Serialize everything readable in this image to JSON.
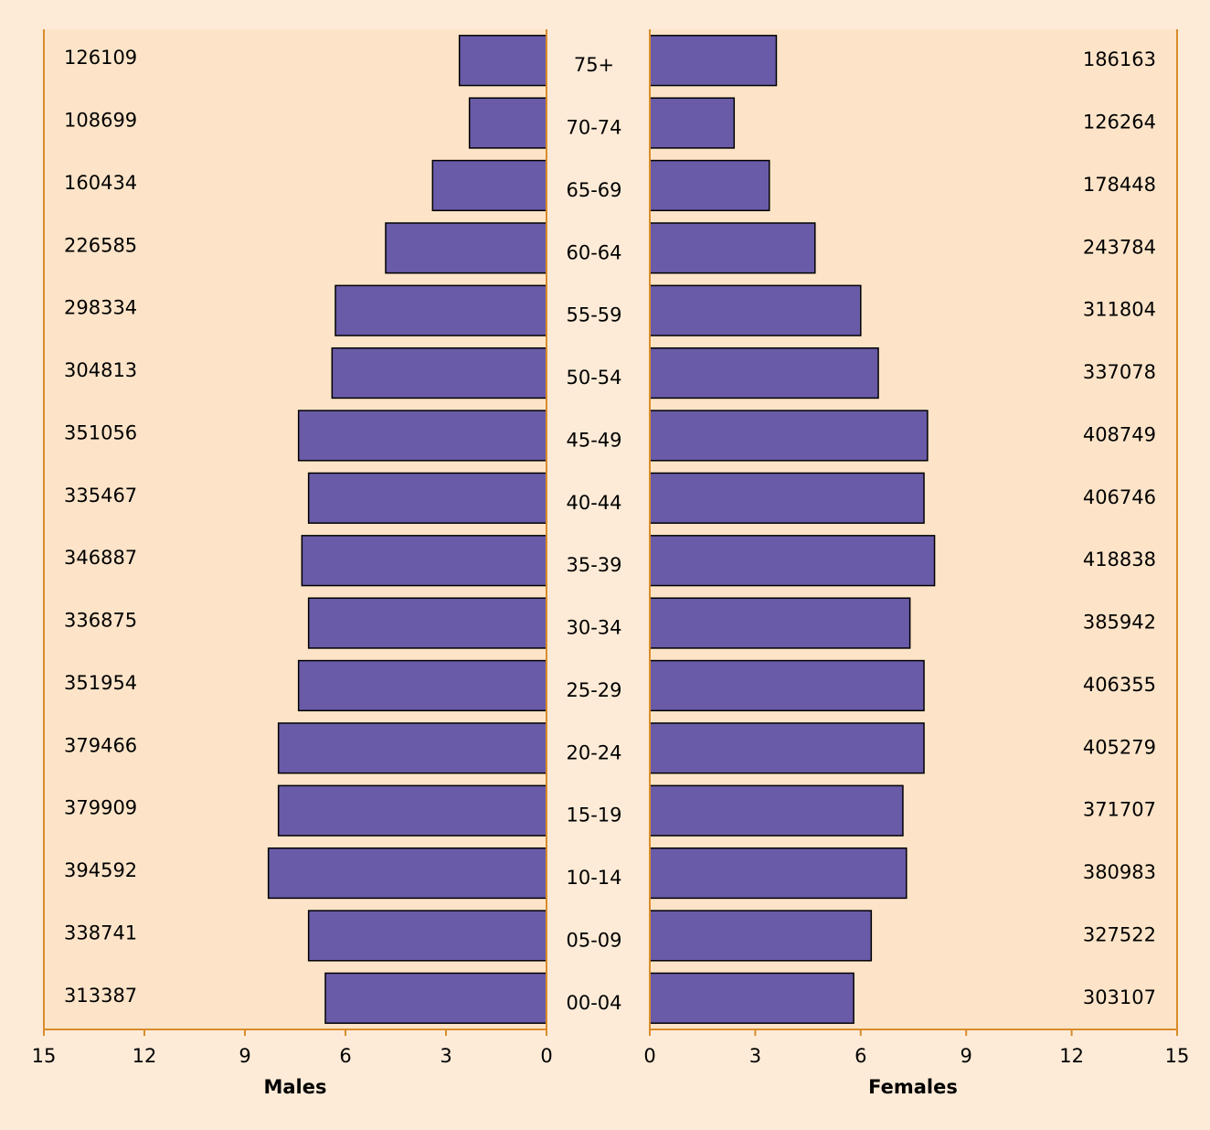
{
  "chart_data": {
    "type": "bar",
    "orientation": "horizontal",
    "layout": "population-pyramid",
    "categories": [
      "75+",
      "70-74",
      "65-69",
      "60-64",
      "55-59",
      "50-54",
      "45-49",
      "40-44",
      "35-39",
      "30-34",
      "25-29",
      "20-24",
      "15-19",
      "10-14",
      "05-09",
      "00-04"
    ],
    "series": [
      {
        "name": "Males",
        "percent": [
          2.6,
          2.3,
          3.4,
          4.8,
          6.3,
          6.4,
          7.4,
          7.1,
          7.3,
          7.1,
          7.4,
          8.0,
          8.0,
          8.3,
          7.1,
          6.6
        ],
        "counts": [
          "126109",
          "108699",
          "160434",
          "226585",
          "298334",
          "304813",
          "351056",
          "335467",
          "346887",
          "336875",
          "351954",
          "379466",
          "379909",
          "394592",
          "338741",
          "313387"
        ]
      },
      {
        "name": "Females",
        "percent": [
          3.6,
          2.4,
          3.4,
          4.7,
          6.0,
          6.5,
          7.9,
          7.8,
          8.1,
          7.4,
          7.8,
          7.8,
          7.2,
          7.3,
          6.3,
          5.8
        ],
        "counts": [
          "186163",
          "126264",
          "178448",
          "243784",
          "311804",
          "337078",
          "408749",
          "406746",
          "418838",
          "385942",
          "406355",
          "405279",
          "371707",
          "380983",
          "327522",
          "303107"
        ]
      }
    ],
    "xlim": [
      0,
      15
    ],
    "x_ticks": [
      "0",
      "3",
      "6",
      "9",
      "12",
      "15"
    ],
    "xlabel_left": "Males",
    "xlabel_right": "Females",
    "colors": {
      "bar": "#6a5ba8",
      "plot_background": "#fde4c8",
      "page_background": "#fdebd7",
      "axis": "#d98c2b"
    }
  }
}
